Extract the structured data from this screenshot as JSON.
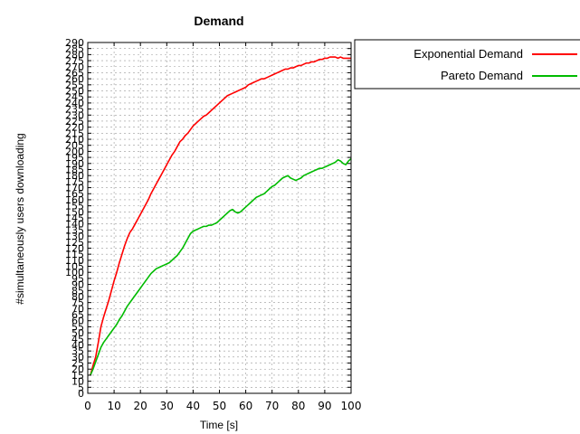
{
  "chart_data": {
    "type": "line",
    "title": "Demand",
    "xlabel": "Time [s]",
    "ylabel": "#simultaneously users downloading",
    "xlim": [
      0,
      100
    ],
    "ylim": [
      0,
      290
    ],
    "x_ticks": [
      0,
      10,
      20,
      30,
      40,
      50,
      60,
      70,
      80,
      90,
      100
    ],
    "y_ticks": [
      0,
      5,
      10,
      15,
      20,
      25,
      30,
      35,
      40,
      45,
      50,
      55,
      60,
      65,
      70,
      75,
      80,
      85,
      90,
      95,
      100,
      105,
      110,
      115,
      120,
      125,
      130,
      135,
      140,
      145,
      150,
      155,
      160,
      165,
      170,
      175,
      180,
      185,
      190,
      195,
      200,
      205,
      210,
      215,
      220,
      225,
      230,
      235,
      240,
      245,
      250,
      255,
      260,
      265,
      270,
      275,
      280,
      285,
      290
    ],
    "grid": true,
    "legend_position": "outside-right",
    "series": [
      {
        "name": "Exponential Demand",
        "color": "#ff0000",
        "points": [
          [
            1,
            15
          ],
          [
            2,
            23
          ],
          [
            3,
            30
          ],
          [
            4,
            42
          ],
          [
            5,
            55
          ],
          [
            6,
            63
          ],
          [
            7,
            70
          ],
          [
            8,
            77
          ],
          [
            9,
            85
          ],
          [
            10,
            93
          ],
          [
            11,
            100
          ],
          [
            12,
            108
          ],
          [
            13,
            115
          ],
          [
            14,
            122
          ],
          [
            15,
            128
          ],
          [
            16,
            133
          ],
          [
            17,
            136
          ],
          [
            18,
            140
          ],
          [
            19,
            144
          ],
          [
            20,
            148
          ],
          [
            21,
            152
          ],
          [
            22,
            156
          ],
          [
            23,
            160
          ],
          [
            24,
            165
          ],
          [
            25,
            169
          ],
          [
            26,
            173
          ],
          [
            27,
            177
          ],
          [
            28,
            181
          ],
          [
            29,
            185
          ],
          [
            30,
            189
          ],
          [
            31,
            193
          ],
          [
            32,
            197
          ],
          [
            33,
            200
          ],
          [
            34,
            204
          ],
          [
            35,
            208
          ],
          [
            36,
            210
          ],
          [
            37,
            213
          ],
          [
            38,
            215
          ],
          [
            39,
            218
          ],
          [
            40,
            221
          ],
          [
            41,
            223
          ],
          [
            42,
            225
          ],
          [
            43,
            227
          ],
          [
            44,
            229
          ],
          [
            45,
            230
          ],
          [
            46,
            232
          ],
          [
            47,
            234
          ],
          [
            48,
            236
          ],
          [
            49,
            238
          ],
          [
            50,
            240
          ],
          [
            51,
            242
          ],
          [
            52,
            244
          ],
          [
            53,
            246
          ],
          [
            54,
            247
          ],
          [
            55,
            248
          ],
          [
            56,
            249
          ],
          [
            57,
            250
          ],
          [
            58,
            251
          ],
          [
            59,
            252
          ],
          [
            60,
            253
          ],
          [
            61,
            255
          ],
          [
            62,
            256
          ],
          [
            63,
            257
          ],
          [
            64,
            258
          ],
          [
            65,
            259
          ],
          [
            66,
            260
          ],
          [
            67,
            260
          ],
          [
            68,
            261
          ],
          [
            69,
            262
          ],
          [
            70,
            263
          ],
          [
            71,
            264
          ],
          [
            72,
            265
          ],
          [
            73,
            266
          ],
          [
            74,
            267
          ],
          [
            75,
            268
          ],
          [
            76,
            268
          ],
          [
            77,
            269
          ],
          [
            78,
            269
          ],
          [
            79,
            270
          ],
          [
            80,
            271
          ],
          [
            81,
            271
          ],
          [
            82,
            272
          ],
          [
            83,
            273
          ],
          [
            84,
            273
          ],
          [
            85,
            274
          ],
          [
            86,
            274
          ],
          [
            87,
            275
          ],
          [
            88,
            276
          ],
          [
            89,
            276
          ],
          [
            90,
            277
          ],
          [
            91,
            277
          ],
          [
            92,
            278
          ],
          [
            93,
            278
          ],
          [
            94,
            278
          ],
          [
            95,
            277
          ],
          [
            96,
            278
          ],
          [
            97,
            277
          ],
          [
            98,
            277
          ],
          [
            99,
            277
          ],
          [
            100,
            277
          ]
        ]
      },
      {
        "name": "Pareto Demand",
        "color": "#00bb00",
        "points": [
          [
            1,
            15
          ],
          [
            2,
            20
          ],
          [
            3,
            26
          ],
          [
            4,
            32
          ],
          [
            5,
            38
          ],
          [
            6,
            42
          ],
          [
            7,
            45
          ],
          [
            8,
            48
          ],
          [
            9,
            51
          ],
          [
            10,
            54
          ],
          [
            11,
            57
          ],
          [
            12,
            61
          ],
          [
            13,
            64
          ],
          [
            14,
            68
          ],
          [
            15,
            72
          ],
          [
            16,
            75
          ],
          [
            17,
            78
          ],
          [
            18,
            81
          ],
          [
            19,
            84
          ],
          [
            20,
            87
          ],
          [
            21,
            90
          ],
          [
            22,
            93
          ],
          [
            23,
            96
          ],
          [
            24,
            99
          ],
          [
            25,
            101
          ],
          [
            26,
            103
          ],
          [
            27,
            104
          ],
          [
            28,
            105
          ],
          [
            29,
            106
          ],
          [
            30,
            107
          ],
          [
            31,
            108
          ],
          [
            32,
            110
          ],
          [
            33,
            112
          ],
          [
            34,
            114
          ],
          [
            35,
            117
          ],
          [
            36,
            120
          ],
          [
            37,
            124
          ],
          [
            38,
            128
          ],
          [
            39,
            132
          ],
          [
            40,
            134
          ],
          [
            41,
            135
          ],
          [
            42,
            136
          ],
          [
            43,
            137
          ],
          [
            44,
            138
          ],
          [
            45,
            138
          ],
          [
            46,
            139
          ],
          [
            47,
            139
          ],
          [
            48,
            140
          ],
          [
            49,
            141
          ],
          [
            50,
            143
          ],
          [
            51,
            145
          ],
          [
            52,
            147
          ],
          [
            53,
            149
          ],
          [
            54,
            151
          ],
          [
            55,
            152
          ],
          [
            56,
            150
          ],
          [
            57,
            149
          ],
          [
            58,
            150
          ],
          [
            59,
            152
          ],
          [
            60,
            154
          ],
          [
            61,
            156
          ],
          [
            62,
            158
          ],
          [
            63,
            160
          ],
          [
            64,
            162
          ],
          [
            65,
            163
          ],
          [
            66,
            164
          ],
          [
            67,
            165
          ],
          [
            68,
            167
          ],
          [
            69,
            169
          ],
          [
            70,
            171
          ],
          [
            71,
            172
          ],
          [
            72,
            174
          ],
          [
            73,
            176
          ],
          [
            74,
            178
          ],
          [
            75,
            179
          ],
          [
            76,
            180
          ],
          [
            77,
            178
          ],
          [
            78,
            177
          ],
          [
            79,
            176
          ],
          [
            80,
            177
          ],
          [
            81,
            178
          ],
          [
            82,
            180
          ],
          [
            83,
            181
          ],
          [
            84,
            182
          ],
          [
            85,
            183
          ],
          [
            86,
            184
          ],
          [
            87,
            185
          ],
          [
            88,
            186
          ],
          [
            89,
            186
          ],
          [
            90,
            187
          ],
          [
            91,
            188
          ],
          [
            92,
            189
          ],
          [
            93,
            190
          ],
          [
            94,
            191
          ],
          [
            95,
            193
          ],
          [
            96,
            192
          ],
          [
            97,
            190
          ],
          [
            98,
            189
          ],
          [
            99,
            192
          ],
          [
            100,
            194
          ]
        ]
      }
    ]
  }
}
